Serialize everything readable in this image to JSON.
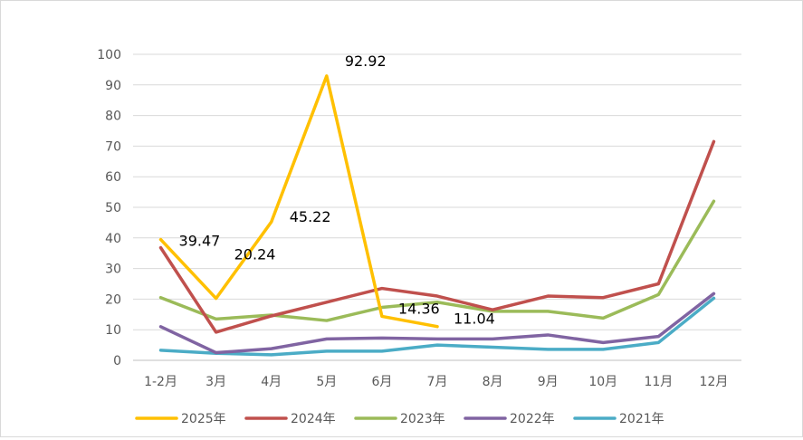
{
  "chart_data": {
    "type": "line",
    "categories": [
      "1-2月",
      "3月",
      "4月",
      "5月",
      "6月",
      "7月",
      "8月",
      "9月",
      "10月",
      "11月",
      "12月"
    ],
    "ylim": [
      0,
      100
    ],
    "yticks": [
      "0",
      "10",
      "20",
      "30",
      "40",
      "50",
      "60",
      "70",
      "80",
      "90",
      "100"
    ],
    "grid": true,
    "legend_position": "bottom",
    "series": [
      {
        "name": "2025年",
        "color": "#FFC000",
        "values": [
          39.47,
          20.24,
          45.22,
          92.92,
          14.36,
          11.04,
          null,
          null,
          null,
          null,
          null
        ]
      },
      {
        "name": "2024年",
        "color": "#C0504D",
        "values": [
          36.8,
          9.2,
          14.5,
          19.0,
          23.5,
          21.0,
          16.5,
          21.0,
          20.5,
          25.0,
          71.5
        ]
      },
      {
        "name": "2023年",
        "color": "#9BBB59",
        "values": [
          20.5,
          13.5,
          14.8,
          13.0,
          17.3,
          19.0,
          16.0,
          16.0,
          13.8,
          21.5,
          52.0
        ]
      },
      {
        "name": "2022年",
        "color": "#8064A2",
        "values": [
          11.0,
          2.5,
          3.8,
          7.0,
          7.3,
          7.0,
          7.0,
          8.3,
          5.8,
          7.8,
          21.8
        ]
      },
      {
        "name": "2021年",
        "color": "#4BACC6",
        "values": [
          3.3,
          2.3,
          1.8,
          3.0,
          3.0,
          5.0,
          4.3,
          3.6,
          3.6,
          5.8,
          20.3
        ]
      }
    ],
    "data_labels": [
      {
        "series": 0,
        "index": 0,
        "text": "39.47"
      },
      {
        "series": 0,
        "index": 1,
        "text": "20.24"
      },
      {
        "series": 0,
        "index": 2,
        "text": "45.22"
      },
      {
        "series": 0,
        "index": 3,
        "text": "92.92"
      },
      {
        "series": 0,
        "index": 4,
        "text": "14.36"
      },
      {
        "series": 0,
        "index": 5,
        "text": "11.04"
      }
    ]
  }
}
